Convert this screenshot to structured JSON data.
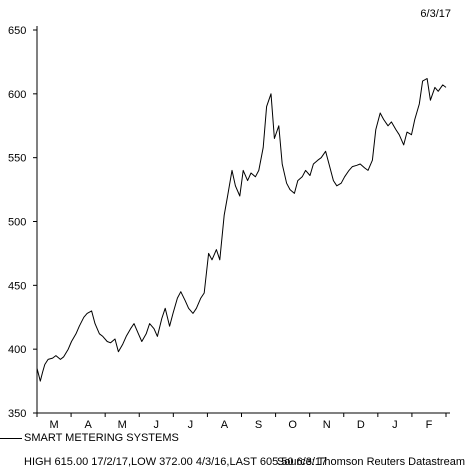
{
  "header": {
    "date": "6/3/17"
  },
  "title": "SMART METERING SYSTEMS",
  "footer": {
    "highlow": "HIGH 615.00 17/2/17,LOW 372.00 4/3/16,LAST 605.50 6/3/17",
    "source": "Source: Thomson Reuters Datastream"
  },
  "chart_data": {
    "type": "line",
    "title": "SMART METERING SYSTEMS",
    "x": [
      0,
      3,
      5,
      7,
      10,
      14,
      17,
      21,
      24,
      28,
      31,
      35,
      38,
      42,
      45,
      49,
      52,
      56,
      59,
      63,
      66,
      70,
      73,
      77,
      80,
      84,
      87,
      91,
      94,
      98,
      101,
      105,
      108,
      112,
      115,
      119,
      122,
      126,
      129,
      133,
      136,
      140,
      143,
      147,
      150,
      154,
      157,
      161,
      164,
      168,
      171,
      175,
      178,
      182,
      185,
      189,
      192,
      196,
      199,
      203,
      206,
      210,
      213,
      217,
      220,
      224,
      227,
      231,
      234,
      238,
      241,
      245,
      248,
      252,
      255,
      259,
      262,
      266,
      269,
      273,
      276,
      280,
      283,
      287,
      290,
      294,
      297,
      301,
      304,
      308,
      311,
      315,
      318,
      322,
      325,
      329,
      332,
      336,
      339,
      343,
      346,
      350,
      353,
      357,
      360,
      364,
      367
    ],
    "y": [
      385,
      375,
      382,
      388,
      392,
      393,
      395,
      392,
      394,
      400,
      406,
      412,
      418,
      425,
      428,
      430,
      420,
      412,
      410,
      406,
      405,
      408,
      398,
      404,
      410,
      416,
      420,
      412,
      406,
      412,
      420,
      416,
      410,
      424,
      432,
      418,
      428,
      440,
      445,
      438,
      432,
      428,
      432,
      440,
      444,
      475,
      470,
      478,
      470,
      505,
      520,
      540,
      528,
      520,
      540,
      532,
      538,
      535,
      540,
      558,
      590,
      600,
      565,
      575,
      545,
      530,
      525,
      522,
      532,
      535,
      540,
      536,
      545,
      548,
      550,
      555,
      545,
      532,
      528,
      530,
      535,
      540,
      543,
      544,
      545,
      542,
      540,
      548,
      572,
      585,
      580,
      575,
      578,
      572,
      568,
      560,
      570,
      568,
      580,
      592,
      610,
      612,
      595,
      605,
      602,
      607,
      605
    ],
    "xlim": [
      0,
      367
    ],
    "ylim": [
      350,
      650
    ],
    "yticks": [
      "350",
      "400",
      "450",
      "500",
      "550",
      "600",
      "650"
    ],
    "xticks": [
      "M",
      "A",
      "M",
      "J",
      "J",
      "A",
      "S",
      "O",
      "N",
      "D",
      "J",
      "F"
    ],
    "grid": false,
    "line_color": "#000000"
  }
}
